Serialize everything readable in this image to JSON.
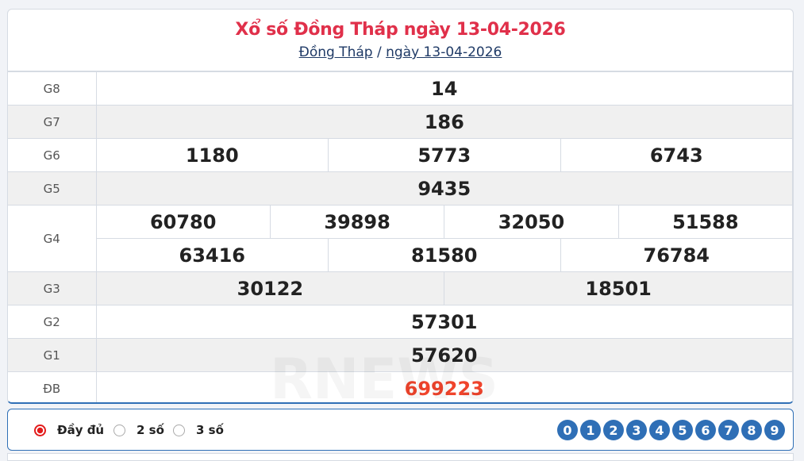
{
  "header": {
    "title": "Xổ số Đồng Tháp ngày 13-04-2026",
    "crumb_province": "Đồng Tháp",
    "crumb_sep": "/",
    "crumb_date": "ngày 13-04-2026"
  },
  "prizes": [
    {
      "label": "G8",
      "rows": [
        [
          "14"
        ]
      ]
    },
    {
      "label": "G7",
      "rows": [
        [
          "186"
        ]
      ]
    },
    {
      "label": "G6",
      "rows": [
        [
          "1180",
          "5773",
          "6743"
        ]
      ]
    },
    {
      "label": "G5",
      "rows": [
        [
          "9435"
        ]
      ]
    },
    {
      "label": "G4",
      "rows": [
        [
          "60780",
          "39898",
          "32050",
          "51588"
        ],
        [
          "63416",
          "81580",
          "76784"
        ]
      ]
    },
    {
      "label": "G3",
      "rows": [
        [
          "30122",
          "18501"
        ]
      ]
    },
    {
      "label": "G2",
      "rows": [
        [
          "57301"
        ]
      ]
    },
    {
      "label": "G1",
      "rows": [
        [
          "57620"
        ]
      ]
    },
    {
      "label": "ĐB",
      "rows": [
        [
          "699223"
        ]
      ]
    }
  ],
  "filter": {
    "options": [
      "Đầy đủ",
      "2 số",
      "3 số"
    ],
    "selected": "Đầy đủ",
    "digits": [
      "0",
      "1",
      "2",
      "3",
      "4",
      "5",
      "6",
      "7",
      "8",
      "9"
    ]
  },
  "colors": {
    "title": "#e0304a",
    "accent": "#2f6fb6",
    "special": "#f0442c"
  }
}
